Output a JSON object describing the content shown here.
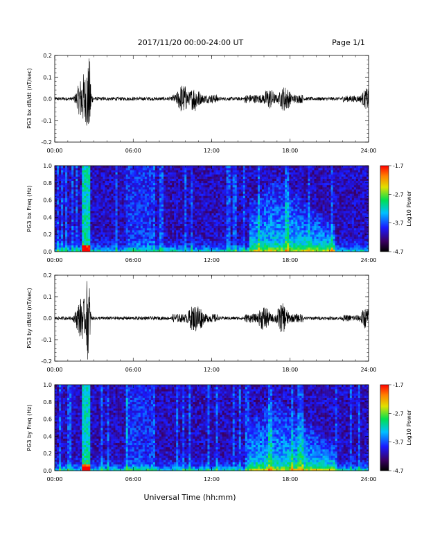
{
  "header": {
    "title": "2017/11/20  00:00-24:00 UT",
    "page": "Page 1/1"
  },
  "footer": {
    "xlabel": "Universal Time (hh:mm)"
  },
  "chart_data": [
    {
      "type": "line",
      "id": "bx-dbdt",
      "ylabel": "PG3 bx dB/dt (nT/sec)",
      "xlim": [
        "00:00",
        "24:00"
      ],
      "ylim": [
        -0.2,
        0.2
      ],
      "x_ticks": [
        "00:00",
        "06:00",
        "12:00",
        "18:00",
        "24:00"
      ],
      "y_ticks": [
        "-0.2",
        "-0.1",
        "0.0",
        "0.1",
        "0.2"
      ],
      "activity": [
        {
          "t": 2.2,
          "amp": 0.12
        },
        {
          "t": 2.5,
          "amp": 0.2
        },
        {
          "t": 2.65,
          "amp": 0.2
        },
        {
          "t": 9.8,
          "amp": 0.07
        },
        {
          "t": 10.7,
          "amp": 0.06
        },
        {
          "t": 16.4,
          "amp": 0.05
        },
        {
          "t": 17.6,
          "amp": 0.06
        },
        {
          "t": 23.9,
          "amp": 0.05
        }
      ]
    },
    {
      "type": "heatmap",
      "id": "bx-spec",
      "ylabel": "PG3 bx Freq (Hz)",
      "xlim": [
        "00:00",
        "24:00"
      ],
      "ylim": [
        0.0,
        1.0
      ],
      "x_ticks": [
        "00:00",
        "06:00",
        "12:00",
        "18:00",
        "24:00"
      ],
      "y_ticks": [
        "0.0",
        "0.2",
        "0.4",
        "0.6",
        "0.8",
        "1.0"
      ],
      "colorbar": {
        "label": "Log10 Power",
        "ticks": [
          "-1.7",
          "-2.7",
          "-3.7",
          "-4.7"
        ],
        "range": [
          -4.7,
          -1.7
        ]
      }
    },
    {
      "type": "line",
      "id": "by-dbdt",
      "ylabel": "PG3 by dB/dt (nT/sec)",
      "xlim": [
        "00:00",
        "24:00"
      ],
      "ylim": [
        -0.2,
        0.2
      ],
      "x_ticks": [
        "00:00",
        "06:00",
        "12:00",
        "18:00",
        "24:00"
      ],
      "y_ticks": [
        "-0.2",
        "-0.1",
        "0.0",
        "0.1",
        "0.2"
      ],
      "activity": [
        {
          "t": 2.1,
          "amp": 0.1
        },
        {
          "t": 2.5,
          "amp": 0.2
        },
        {
          "t": 2.6,
          "amp": 0.2
        },
        {
          "t": 10.6,
          "amp": 0.06
        },
        {
          "t": 10.9,
          "amp": 0.07
        },
        {
          "t": 16.0,
          "amp": 0.06
        },
        {
          "t": 17.4,
          "amp": 0.07
        },
        {
          "t": 23.8,
          "amp": 0.05
        }
      ]
    },
    {
      "type": "heatmap",
      "id": "by-spec",
      "ylabel": "PG3 by Freq (Hz)",
      "xlim": [
        "00:00",
        "24:00"
      ],
      "ylim": [
        0.0,
        1.0
      ],
      "x_ticks": [
        "00:00",
        "06:00",
        "12:00",
        "18:00",
        "24:00"
      ],
      "y_ticks": [
        "0.0",
        "0.2",
        "0.4",
        "0.6",
        "0.8",
        "1.0"
      ],
      "colorbar": {
        "label": "Log10 Power",
        "ticks": [
          "-1.7",
          "-2.7",
          "-3.7",
          "-4.7"
        ],
        "range": [
          -4.7,
          -1.7
        ]
      }
    }
  ]
}
